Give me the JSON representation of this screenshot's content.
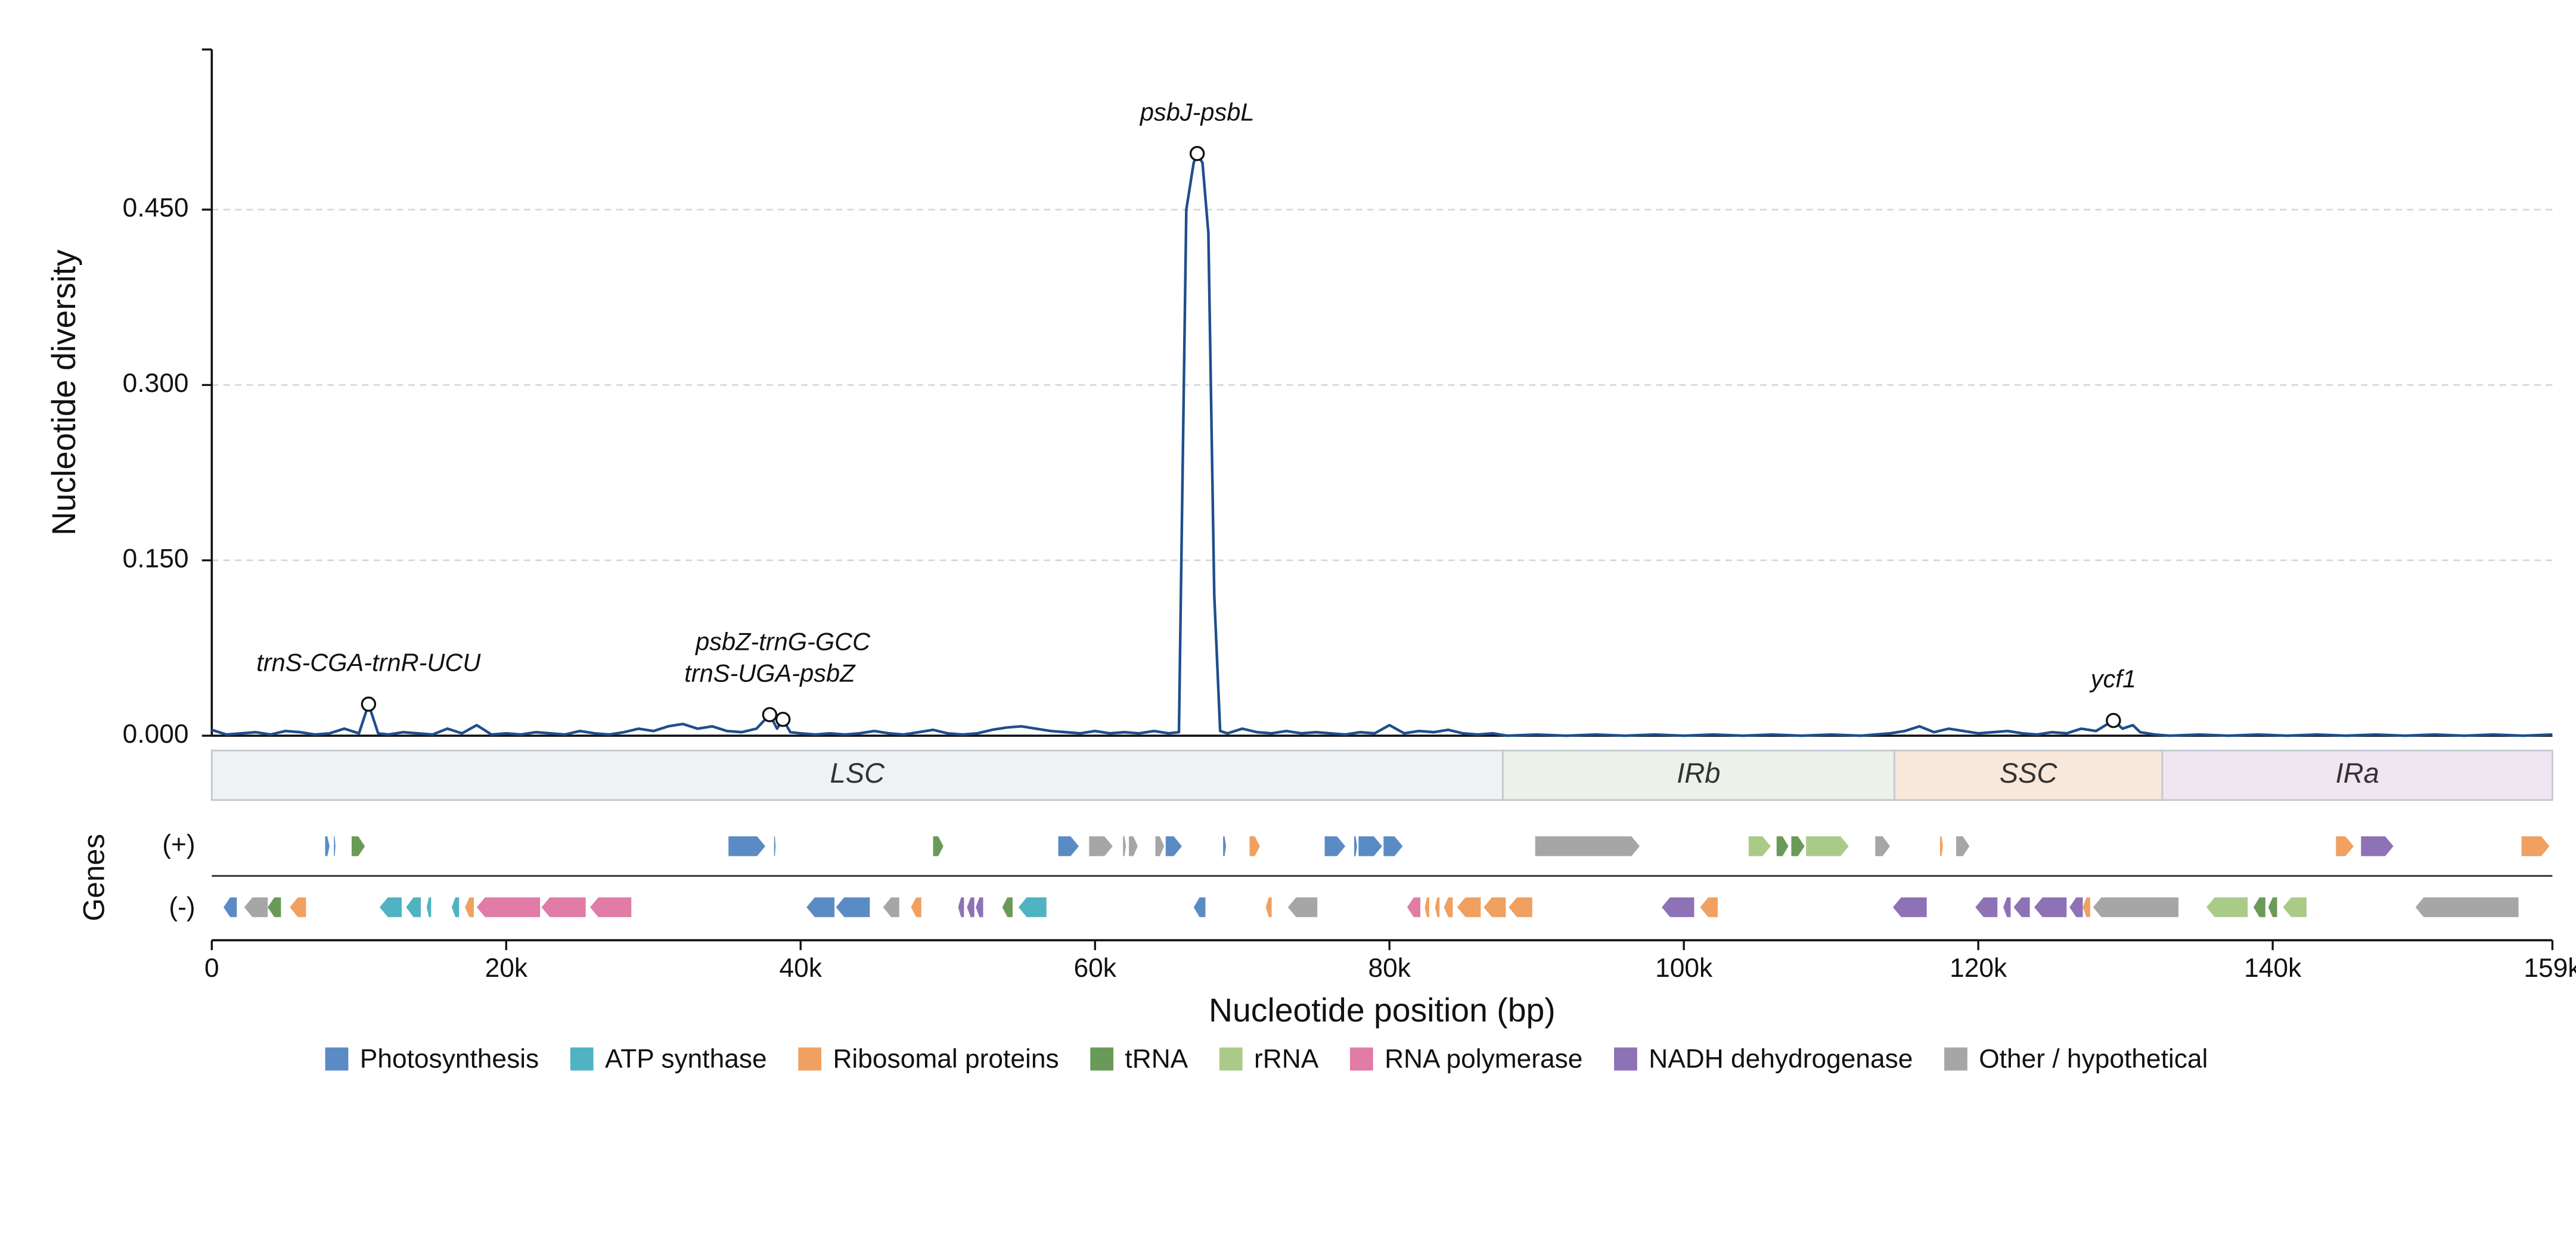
{
  "chart_data": {
    "type": "line",
    "ylabel": "Nucleotide diversity",
    "xlabel": "Nucleotide position (bp)",
    "genes_label": "Genes",
    "strand_labels": [
      "(+)",
      "(-)"
    ],
    "xlim": [
      0,
      159000
    ],
    "ylim": [
      0,
      0.587
    ],
    "xticks": [
      0,
      {
        "value": 20000,
        "label": "20k"
      },
      {
        "value": 40000,
        "label": "40k"
      },
      {
        "value": 60000,
        "label": "60k"
      },
      {
        "value": 80000,
        "label": "80k"
      },
      {
        "value": 100000,
        "label": "100k"
      },
      {
        "value": 120000,
        "label": "120k"
      },
      {
        "value": 140000,
        "label": "140k"
      },
      {
        "value": 159000,
        "label": "159k"
      }
    ],
    "yticks": [
      {
        "value": 0,
        "label": "0.000"
      },
      {
        "value": 0.15,
        "label": "0.150"
      },
      {
        "value": 0.3,
        "label": "0.300"
      },
      {
        "value": 0.45,
        "label": "0.450"
      }
    ],
    "grid": true,
    "x": [
      0,
      1000,
      2000,
      3000,
      4000,
      5000,
      6000,
      7000,
      8000,
      9000,
      10000,
      10650,
      11300,
      12000,
      13000,
      14000,
      15000,
      16000,
      17000,
      18000,
      19000,
      20000,
      21000,
      22000,
      23000,
      24000,
      25000,
      26000,
      27000,
      28000,
      29000,
      30000,
      31000,
      32000,
      33000,
      34000,
      35000,
      36000,
      37000,
      37900,
      38400,
      38800,
      39300,
      40000,
      41000,
      42000,
      43000,
      44000,
      45000,
      46000,
      47000,
      48000,
      49000,
      50000,
      51000,
      52000,
      53000,
      54000,
      55000,
      56000,
      57000,
      58000,
      59000,
      60000,
      61000,
      62000,
      63000,
      64000,
      65000,
      65700,
      66200,
      66700,
      66940,
      67300,
      67700,
      68100,
      68500,
      69000,
      70000,
      71000,
      72000,
      73000,
      74000,
      75000,
      76000,
      77000,
      78000,
      79000,
      80000,
      81000,
      82000,
      83000,
      84000,
      85000,
      86000,
      87000,
      88000,
      90000,
      92000,
      94000,
      96000,
      98000,
      100000,
      102000,
      104000,
      106000,
      108000,
      110000,
      112000,
      113000,
      114000,
      115000,
      116000,
      117000,
      118000,
      119000,
      120000,
      121000,
      122000,
      123000,
      124000,
      125000,
      126000,
      127000,
      128000,
      129180,
      129800,
      130500,
      131000,
      132000,
      133000,
      135000,
      137000,
      139000,
      141000,
      143000,
      145000,
      147000,
      149000,
      151000,
      153000,
      155000,
      157000,
      159000
    ],
    "series": [
      {
        "name": "Pi",
        "color": "#1f4e8c",
        "values": [
          0.005,
          0.001,
          0.002,
          0.003,
          0.001,
          0.004,
          0.003,
          0.001,
          0.002,
          0.006,
          0.002,
          0.027,
          0.002,
          0.001,
          0.003,
          0.002,
          0.001,
          0.006,
          0.002,
          0.009,
          0.001,
          0.002,
          0.001,
          0.003,
          0.002,
          0.001,
          0.004,
          0.002,
          0.001,
          0.003,
          0.006,
          0.004,
          0.008,
          0.01,
          0.006,
          0.008,
          0.004,
          0.003,
          0.006,
          0.018,
          0.006,
          0.014,
          0.003,
          0.002,
          0.001,
          0.002,
          0.001,
          0.002,
          0.004,
          0.002,
          0.001,
          0.003,
          0.005,
          0.002,
          0.001,
          0.002,
          0.005,
          0.007,
          0.008,
          0.006,
          0.004,
          0.003,
          0.002,
          0.004,
          0.002,
          0.003,
          0.002,
          0.004,
          0.002,
          0.003,
          0.45,
          0.49,
          0.498,
          0.49,
          0.43,
          0.12,
          0.004,
          0.002,
          0.006,
          0.003,
          0.002,
          0.004,
          0.002,
          0.003,
          0.002,
          0.001,
          0.003,
          0.002,
          0.009,
          0.002,
          0.004,
          0.003,
          0.005,
          0.002,
          0.001,
          0.002,
          0,
          0.001,
          0,
          0.001,
          0,
          0.001,
          0,
          0.001,
          0,
          0.001,
          0,
          0.001,
          0,
          0.001,
          0.002,
          0.004,
          0.008,
          0.003,
          0.006,
          0.004,
          0.002,
          0.003,
          0.004,
          0.002,
          0.001,
          0.003,
          0.002,
          0.006,
          0.004,
          0.013,
          0.006,
          0.009,
          0.003,
          0.001,
          0,
          0.001,
          0,
          0.001,
          0,
          0.001,
          0,
          0.001,
          0,
          0.001,
          0,
          0.001,
          0,
          0.001
        ]
      }
    ],
    "annotations": [
      {
        "label": "trnS-CGA-trnR-UCU",
        "x": 10650,
        "y": 0.027
      },
      {
        "label": "trnS-UGA-psbZ",
        "x": 37900,
        "y": 0.018
      },
      {
        "label": "psbZ-trnG-GCC",
        "x": 38800,
        "y": 0.014
      },
      {
        "label": "psbJ-psbL",
        "x": 66940,
        "y": 0.498
      },
      {
        "label": "ycf1",
        "x": 129180,
        "y": 0.013
      }
    ],
    "regions": [
      {
        "name": "LSC",
        "start": 0,
        "end": 87700,
        "color": "#eef2f5"
      },
      {
        "name": "IRb",
        "start": 87700,
        "end": 114300,
        "color": "#ecf2ea"
      },
      {
        "name": "SSC",
        "start": 114300,
        "end": 132500,
        "color": "#f8e8dc"
      },
      {
        "name": "IRa",
        "start": 132500,
        "end": 159000,
        "color": "#f0e6f1"
      }
    ],
    "gene_categories": [
      {
        "name": "Photosynthesis",
        "color": "#5b8bc4",
        "plus": [
          [
            7700,
            8000
          ],
          [
            8300,
            8400
          ],
          [
            35100,
            37600
          ],
          [
            38200,
            38300
          ],
          [
            57500,
            58900
          ],
          [
            64800,
            65900
          ],
          [
            68700,
            68900
          ],
          [
            75600,
            77000
          ],
          [
            77600,
            77800
          ],
          [
            77900,
            79500
          ],
          [
            79600,
            80900
          ]
        ],
        "minus": [
          [
            800,
            1700
          ],
          [
            40400,
            42300
          ],
          [
            42400,
            44700
          ],
          [
            66700,
            67500
          ]
        ]
      },
      {
        "name": "ATP synthase",
        "color": "#4fb3c2",
        "plus": [],
        "minus": [
          [
            11400,
            12900
          ],
          [
            13200,
            14200
          ],
          [
            14600,
            14900
          ],
          [
            16300,
            16800
          ],
          [
            54800,
            56700
          ]
        ]
      },
      {
        "name": "Ribosomal proteins",
        "color": "#f0a060",
        "plus": [
          [
            70500,
            71200
          ],
          [
            117400,
            117600
          ],
          [
            144300,
            145500
          ],
          [
            156900,
            158800
          ]
        ],
        "minus": [
          [
            5300,
            6400
          ],
          [
            17200,
            17800
          ],
          [
            47500,
            48200
          ],
          [
            71600,
            72000
          ],
          [
            82400,
            82700
          ],
          [
            83100,
            83400
          ],
          [
            83700,
            84300
          ],
          [
            84600,
            86200
          ],
          [
            86400,
            87900
          ],
          [
            88100,
            89700
          ],
          [
            101100,
            102300
          ],
          [
            127100,
            127600
          ]
        ]
      },
      {
        "name": "tRNA",
        "color": "#6a9a58",
        "plus": [
          [
            9500,
            10400
          ],
          [
            49000,
            49700
          ],
          [
            106300,
            107100
          ],
          [
            107300,
            108200
          ]
        ],
        "minus": [
          [
            3800,
            4700
          ],
          [
            53700,
            54400
          ],
          [
            138700,
            139500
          ],
          [
            139700,
            140300
          ]
        ]
      },
      {
        "name": "rRNA",
        "color": "#aacb88",
        "plus": [
          [
            104400,
            105900
          ],
          [
            108300,
            111200
          ]
        ],
        "minus": [
          [
            135500,
            138300
          ],
          [
            140700,
            142300
          ]
        ]
      },
      {
        "name": "RNA polymerase",
        "color": "#e07ca6",
        "plus": [],
        "minus": [
          [
            18000,
            22300
          ],
          [
            22400,
            25400
          ],
          [
            25700,
            28500
          ],
          [
            81200,
            82100
          ]
        ]
      },
      {
        "name": "NADH dehydrogenase",
        "color": "#8e72b6",
        "plus": [
          [
            146000,
            148200
          ]
        ],
        "minus": [
          [
            50700,
            51100
          ],
          [
            51300,
            51800
          ],
          [
            51900,
            52400
          ],
          [
            98500,
            100700
          ],
          [
            114200,
            116500
          ],
          [
            119800,
            121300
          ],
          [
            121700,
            122200
          ],
          [
            122400,
            123500
          ],
          [
            123800,
            126000
          ],
          [
            126200,
            127100
          ]
        ]
      },
      {
        "name": "Other / hypothetical",
        "color": "#a6a6a6",
        "plus": [
          [
            59600,
            61200
          ],
          [
            61900,
            62100
          ],
          [
            62300,
            62900
          ],
          [
            64100,
            64700
          ],
          [
            89900,
            97000
          ],
          [
            113000,
            114000
          ],
          [
            118500,
            119400
          ]
        ],
        "minus": [
          [
            2200,
            3800
          ],
          [
            45600,
            46700
          ],
          [
            73100,
            75100
          ],
          [
            127800,
            133600
          ],
          [
            149700,
            156700
          ]
        ]
      }
    ]
  }
}
